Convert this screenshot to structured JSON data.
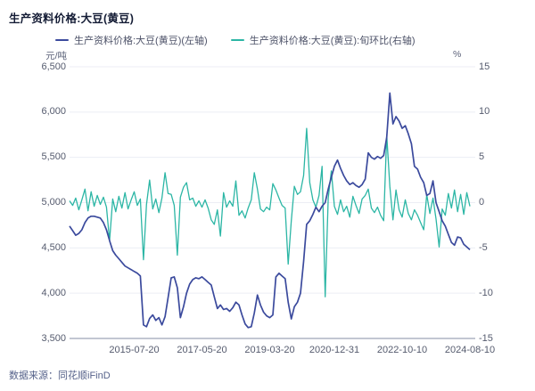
{
  "title": "生产资料价格:大豆(黄豆)",
  "source": "数据来源：同花顺iFinD",
  "colors": {
    "price_line": "#3b4a9d",
    "ratio_line": "#2cb6a5",
    "grid": "#eceef4",
    "axis_line": "#adb4c4"
  },
  "legend": [
    {
      "label": "生产资料价格:大豆(黄豆)(左轴)",
      "color": "#3b4a9d"
    },
    {
      "label": "生产资料价格:大豆(黄豆):旬环比(右轴)",
      "color": "#2cb6a5"
    }
  ],
  "left_axis": {
    "unit": "元/吨",
    "min": 3500,
    "max": 6500,
    "tick_labels": [
      "6,500",
      "6,000",
      "5,500",
      "5,000",
      "4,500",
      "4,000",
      "3,500"
    ],
    "tick_values": [
      6500,
      6000,
      5500,
      5000,
      4500,
      4000,
      3500
    ]
  },
  "right_axis": {
    "unit": "%",
    "min": -15,
    "max": 15,
    "tick_labels": [
      "15",
      "10",
      "5",
      "0",
      "-5",
      "-10",
      "-15"
    ],
    "tick_values": [
      15,
      10,
      5,
      0,
      -5,
      -10,
      -15
    ]
  },
  "chart_data": {
    "type": "line",
    "x_start": "2013-10",
    "x_end": "2024-08-10",
    "x_frequency": "monthly (approx., traced from plot)",
    "x_tick_labels": [
      "2015-07-20",
      "2017-05-20",
      "2019-03-20",
      "2020-12-31",
      "2022-10-10",
      "2024-08-10"
    ],
    "x_tick_indices": [
      21,
      43,
      65,
      86,
      108,
      130
    ],
    "grid": "horizontal-only",
    "legend_position": "top",
    "series": [
      {
        "name": "生产资料价格:大豆(黄豆)(左轴)",
        "axis": "left",
        "color": "#3b4a9d",
        "values": [
          4740,
          4690,
          4640,
          4660,
          4700,
          4780,
          4830,
          4850,
          4850,
          4840,
          4830,
          4780,
          4700,
          4580,
          4470,
          4420,
          4380,
          4340,
          4300,
          4280,
          4260,
          4240,
          4220,
          4190,
          3650,
          3630,
          3720,
          3760,
          3700,
          3730,
          3650,
          3740,
          3950,
          4170,
          4180,
          4060,
          3730,
          3850,
          4000,
          4100,
          4150,
          4170,
          4160,
          4180,
          4150,
          4120,
          4090,
          3960,
          3830,
          3870,
          3820,
          3830,
          3800,
          3840,
          3900,
          3870,
          3760,
          3660,
          3620,
          3630,
          3780,
          3980,
          3870,
          3790,
          3750,
          3730,
          3760,
          4180,
          4220,
          4190,
          4160,
          3900,
          3715,
          3850,
          3900,
          4000,
          4350,
          4760,
          4800,
          4870,
          4950,
          4900,
          4960,
          5000,
          5150,
          5280,
          5400,
          5470,
          5380,
          5300,
          5240,
          5200,
          5220,
          5190,
          5170,
          5200,
          5260,
          5550,
          5500,
          5480,
          5510,
          5490,
          5520,
          5720,
          6210,
          5870,
          5950,
          5900,
          5820,
          5850,
          5760,
          5650,
          5400,
          5370,
          5280,
          5220,
          5080,
          5100,
          5240,
          5000,
          4900,
          4800,
          4740,
          4650,
          4560,
          4530,
          4620,
          4610,
          4540,
          4510,
          4480
        ]
      },
      {
        "name": "生产资料价格:大豆(黄豆):旬环比(右轴)",
        "axis": "right",
        "color": "#2cb6a5",
        "values": [
          0.2,
          -0.3,
          0.5,
          -0.8,
          0.3,
          1.5,
          -0.9,
          1.2,
          -0.4,
          0.8,
          -0.2,
          0.6,
          -0.5,
          -4.2,
          0.4,
          -1.0,
          0.7,
          -0.6,
          1.1,
          -0.7,
          0.3,
          1.2,
          -0.3,
          0.4,
          -6.3,
          -0.2,
          2.5,
          -0.7,
          0.4,
          -1.1,
          0.5,
          3.3,
          1.0,
          0.9,
          -0.3,
          -5.8,
          0.6,
          1.7,
          2.2,
          0.3,
          0.5,
          -0.4,
          0.2,
          -0.5,
          0.3,
          -0.6,
          -1.9,
          -2.4,
          -0.8,
          -3.7,
          1.1,
          -0.5,
          0.2,
          -0.4,
          2.4,
          -1.4,
          -0.9,
          -1.7,
          -0.6,
          0.3,
          3.3,
          1.5,
          -0.7,
          -1.0,
          -0.5,
          -0.8,
          2.1,
          1.4,
          0.5,
          -0.3,
          -0.6,
          -6.8,
          -2.0,
          1.8,
          0.9,
          1.2,
          3.0,
          8.2,
          2.2,
          0.3,
          -0.5,
          0.8,
          4.0,
          -10.4,
          0.5,
          3.5,
          -0.4,
          -1.3,
          0.3,
          -1.0,
          -0.4,
          -1.6,
          0.7,
          -0.3,
          -1.2,
          0.4,
          0.8,
          1.5,
          -0.6,
          -1.1,
          -0.5,
          -1.4,
          -2.0,
          7.5,
          1.8,
          -1.9,
          1.4,
          -0.8,
          -1.6,
          0.3,
          -1.2,
          -1.9,
          -0.8,
          -1.4,
          -2.2,
          -3.0,
          0.9,
          -1.2,
          0.5,
          -1.8,
          -4.9,
          -0.7,
          -1.4,
          1.0,
          -0.6,
          1.4,
          -1.0,
          0.9,
          -1.3,
          1.1,
          -0.4
        ]
      }
    ]
  }
}
